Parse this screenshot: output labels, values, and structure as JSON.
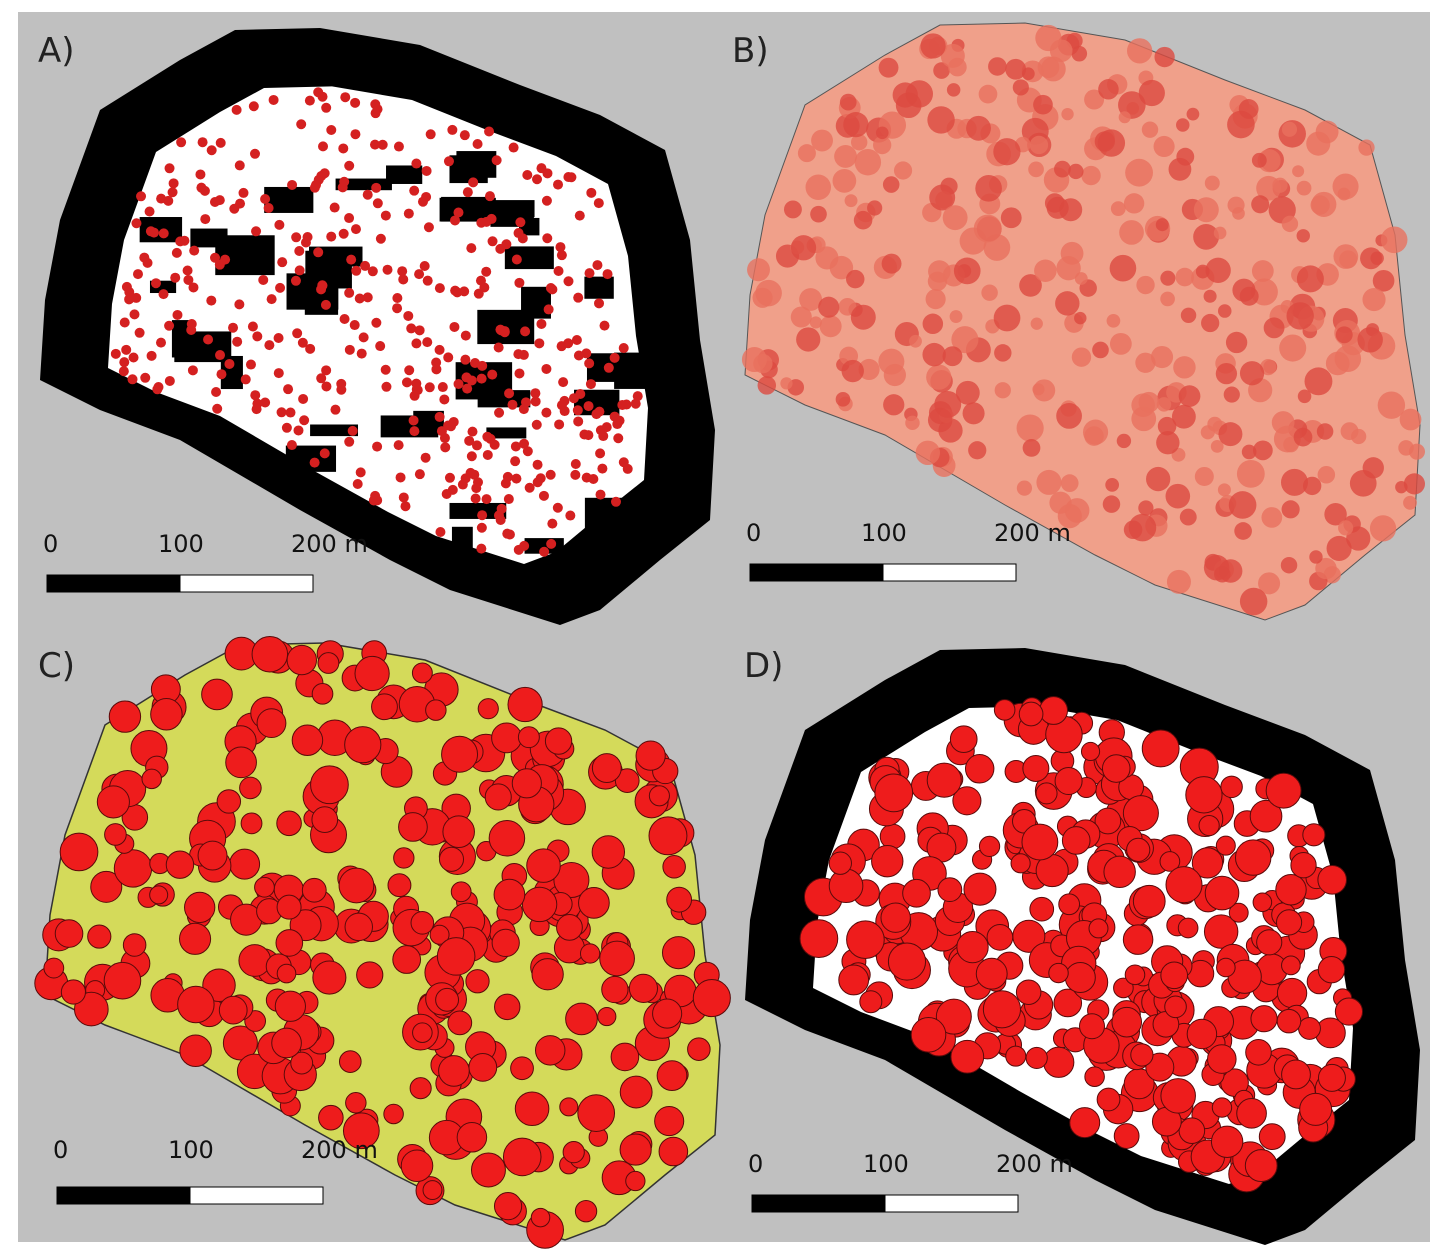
{
  "panels": [
    {
      "label": "A)",
      "scale_labels": [
        "0",
        "100",
        "200 m"
      ]
    },
    {
      "label": "B)",
      "scale_labels": [
        "0",
        "100",
        "200 m"
      ]
    },
    {
      "label": "C)",
      "scale_labels": [
        "0",
        "100",
        "200 m"
      ]
    },
    {
      "label": "D)",
      "scale_labels": [
        "0",
        "100",
        "200 m"
      ]
    }
  ]
}
